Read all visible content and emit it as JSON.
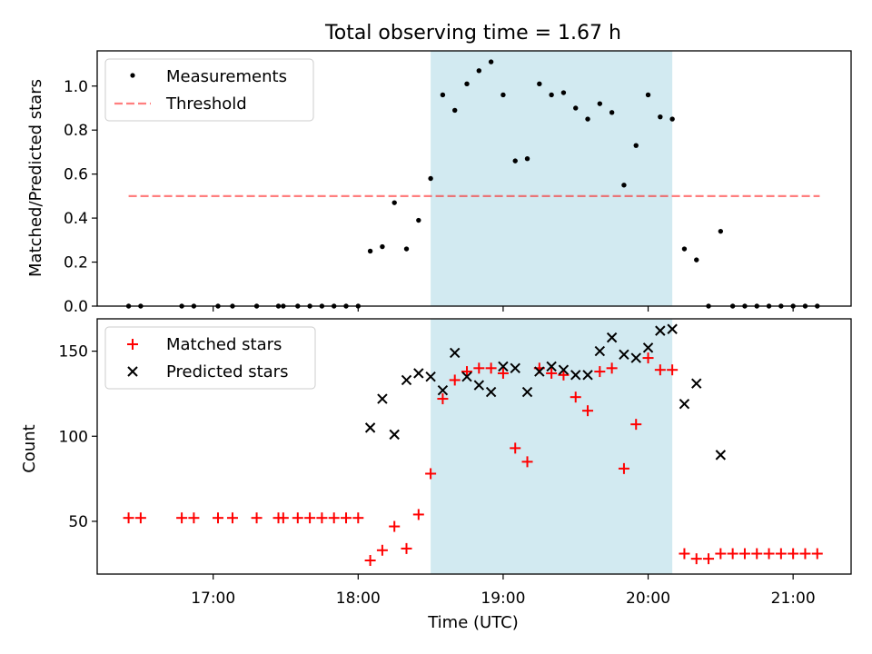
{
  "title": "Total observing time = 1.67 h",
  "colors": {
    "span": "#add8e6",
    "matched": "#ff0000",
    "predicted": "#000000",
    "threshold": "#ff0000",
    "measurement": "#000000"
  },
  "chart_data": [
    {
      "type": "scatter",
      "title": "Total observing time = 1.67 h",
      "xlabel": "",
      "ylabel": "Matched/Predicted stars",
      "xlim": [
        "16:12",
        "21:24"
      ],
      "ylim": [
        0,
        1.16
      ],
      "yticks": [
        "0.0",
        "0.2",
        "0.4",
        "0.6",
        "0.8",
        "1.0"
      ],
      "legend_position": "top-left",
      "shaded_span": [
        "18:30",
        "20:10"
      ],
      "threshold": {
        "name": "Threshold",
        "y": 0.5,
        "x": [
          "16:25",
          "21:11"
        ]
      },
      "series": [
        {
          "name": "Measurements",
          "x": [
            "16:25",
            "16:30",
            "16:47",
            "16:52",
            "17:02",
            "17:08",
            "17:18",
            "17:27",
            "17:29",
            "17:35",
            "17:40",
            "17:45",
            "17:50",
            "17:55",
            "18:00",
            "18:05",
            "18:10",
            "18:15",
            "18:20",
            "18:25",
            "18:30",
            "18:35",
            "18:40",
            "18:45",
            "18:50",
            "18:55",
            "19:00",
            "19:05",
            "19:10",
            "19:15",
            "19:20",
            "19:25",
            "19:30",
            "19:35",
            "19:40",
            "19:45",
            "19:50",
            "19:55",
            "20:00",
            "20:05",
            "20:10",
            "20:15",
            "20:20",
            "20:25",
            "20:30",
            "20:35",
            "20:40",
            "20:45",
            "20:50",
            "20:55",
            "21:00",
            "21:05",
            "21:10"
          ],
          "y": [
            0,
            0,
            0,
            0,
            0,
            0,
            0,
            0,
            0,
            0,
            0,
            0,
            0,
            0,
            0,
            0.25,
            0.27,
            0.47,
            0.26,
            0.39,
            0.58,
            0.96,
            0.89,
            1.01,
            1.07,
            1.11,
            0.96,
            0.66,
            0.67,
            1.01,
            0.96,
            0.97,
            0.9,
            0.85,
            0.92,
            0.88,
            0.55,
            0.73,
            0.96,
            0.86,
            0.85,
            0.26,
            0.21,
            0,
            0.34,
            0,
            0,
            0,
            0,
            0,
            0,
            0,
            0
          ]
        }
      ]
    },
    {
      "type": "scatter",
      "xlabel": "Time (UTC)",
      "ylabel": "Count",
      "xlim": [
        "16:12",
        "21:24"
      ],
      "ylim": [
        19,
        169
      ],
      "yticks": [
        "50",
        "100",
        "150"
      ],
      "xticks": [
        "17:00",
        "18:00",
        "19:00",
        "20:00",
        "21:00"
      ],
      "legend_position": "top-left",
      "shaded_span": [
        "18:30",
        "20:10"
      ],
      "series": [
        {
          "name": "Matched stars",
          "x": [
            "16:25",
            "16:30",
            "16:47",
            "16:52",
            "17:02",
            "17:08",
            "17:18",
            "17:27",
            "17:29",
            "17:35",
            "17:40",
            "17:45",
            "17:50",
            "17:55",
            "18:00",
            "18:05",
            "18:10",
            "18:15",
            "18:20",
            "18:25",
            "18:30",
            "18:35",
            "18:40",
            "18:45",
            "18:50",
            "18:55",
            "19:00",
            "19:05",
            "19:10",
            "19:15",
            "19:20",
            "19:25",
            "19:30",
            "19:35",
            "19:40",
            "19:45",
            "19:50",
            "19:55",
            "20:00",
            "20:05",
            "20:10",
            "20:15",
            "20:20",
            "20:25",
            "20:30",
            "20:35",
            "20:40",
            "20:45",
            "20:50",
            "20:55",
            "21:00",
            "21:05",
            "21:10"
          ],
          "y": [
            52,
            52,
            52,
            52,
            52,
            52,
            52,
            52,
            52,
            52,
            52,
            52,
            52,
            52,
            52,
            27,
            33,
            47,
            34,
            54,
            78,
            122,
            133,
            138,
            140,
            140,
            137,
            93,
            85,
            140,
            137,
            136,
            123,
            115,
            138,
            140,
            81,
            107,
            146,
            139,
            139,
            31,
            28,
            28,
            31,
            31,
            31,
            31,
            31,
            31,
            31,
            31,
            31
          ]
        },
        {
          "name": "Predicted stars",
          "x": [
            "18:05",
            "18:10",
            "18:15",
            "18:20",
            "18:25",
            "18:30",
            "18:35",
            "18:40",
            "18:45",
            "18:50",
            "18:55",
            "19:00",
            "19:05",
            "19:10",
            "19:15",
            "19:20",
            "19:25",
            "19:30",
            "19:35",
            "19:40",
            "19:45",
            "19:50",
            "19:55",
            "20:00",
            "20:05",
            "20:10",
            "20:15",
            "20:20",
            "20:30"
          ],
          "y": [
            105,
            122,
            101,
            133,
            137,
            135,
            127,
            149,
            135,
            130,
            126,
            141,
            140,
            126,
            138,
            141,
            139,
            136,
            136,
            150,
            158,
            148,
            146,
            152,
            162,
            163,
            119,
            131,
            89
          ]
        }
      ]
    }
  ]
}
